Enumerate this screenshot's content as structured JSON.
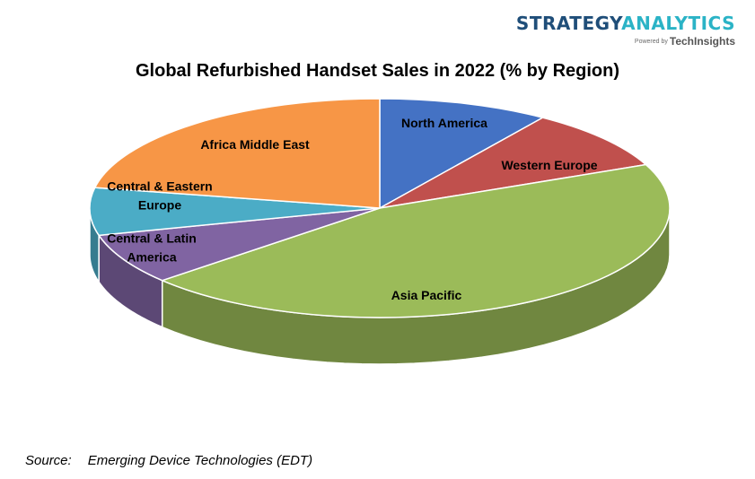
{
  "logo": {
    "part1": "STRATEGY",
    "part2": "ANALYTICS",
    "powered_by": "Powered by",
    "brand": "TechInsights"
  },
  "footer": {
    "source_label": "Source:",
    "source_text": "Emerging Device Technologies (EDT)"
  },
  "chart_data": {
    "type": "pie",
    "title": "Global Refurbished Handset Sales in 2022 (% by Region)",
    "style": "3d",
    "slices": [
      {
        "label": "North America",
        "value": 9.5,
        "color": "#4472c4"
      },
      {
        "label": "Western Europe",
        "value": 9.0,
        "color": "#c0504d"
      },
      {
        "label": "Asia Pacific",
        "value": 45.0,
        "color": "#9bbb59"
      },
      {
        "label": "Central & Latin America",
        "value": 7.5,
        "color": "#8064a2"
      },
      {
        "label": "Central & Eastern Europe",
        "value": 7.0,
        "color": "#4bacc6"
      },
      {
        "label": "Africa Middle East",
        "value": 22.0,
        "color": "#f79646"
      }
    ]
  }
}
